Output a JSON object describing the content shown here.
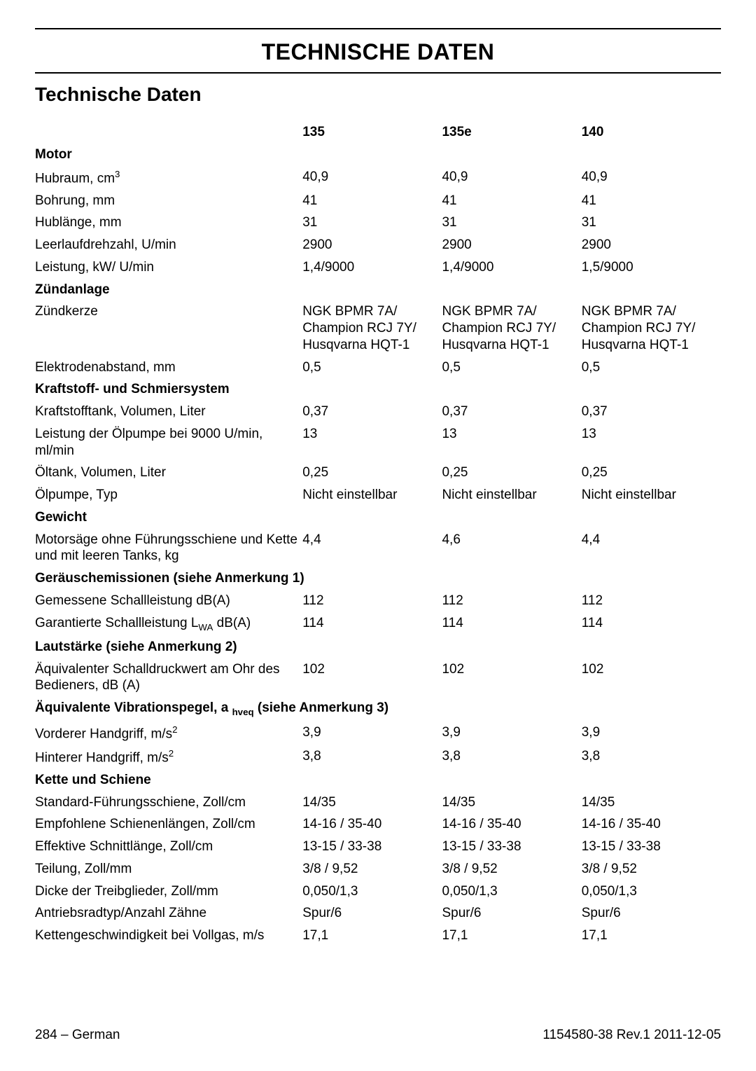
{
  "heading_main": "TECHNISCHE DATEN",
  "heading_section": "Technische Daten",
  "columns": {
    "c1": "135",
    "c2": "135e",
    "c3": "140"
  },
  "groups": [
    {
      "title": "Motor",
      "rows": [
        {
          "label_prefix": "Hubraum, cm",
          "label_sup": "3",
          "v": [
            "40,9",
            "40,9",
            "40,9"
          ]
        },
        {
          "label": "Bohrung, mm",
          "v": [
            "41",
            "41",
            "41"
          ]
        },
        {
          "label": "Hublänge, mm",
          "v": [
            "31",
            "31",
            "31"
          ]
        },
        {
          "label": "Leerlaufdrehzahl, U/min",
          "v": [
            "2900",
            "2900",
            "2900"
          ]
        },
        {
          "label": "Leistung, kW/ U/min",
          "v": [
            "1,4/9000",
            "1,4/9000",
            "1,5/9000"
          ]
        }
      ]
    },
    {
      "title": "Zündanlage",
      "rows": [
        {
          "label": "Zündkerze",
          "v": [
            "NGK BPMR 7A/ Champion RCJ 7Y/ Husqvarna HQT-1",
            "NGK BPMR 7A/ Champion RCJ 7Y/ Husqvarna HQT-1",
            "NGK BPMR 7A/ Champion RCJ 7Y/ Husqvarna HQT-1"
          ]
        },
        {
          "label": "Elektrodenabstand, mm",
          "v": [
            "0,5",
            "0,5",
            "0,5"
          ]
        }
      ]
    },
    {
      "title": "Kraftstoff- und Schmiersystem",
      "rows": [
        {
          "label": "Kraftstofftank, Volumen, Liter",
          "v": [
            "0,37",
            "0,37",
            "0,37"
          ]
        },
        {
          "label": "Leistung der Ölpumpe bei 9000 U/min, ml/min",
          "v": [
            "13",
            "13",
            "13"
          ]
        },
        {
          "label": "Öltank, Volumen, Liter",
          "v": [
            "0,25",
            "0,25",
            "0,25"
          ]
        },
        {
          "label": "Ölpumpe, Typ",
          "v": [
            "Nicht einstellbar",
            "Nicht einstellbar",
            "Nicht einstellbar"
          ]
        }
      ]
    },
    {
      "title": "Gewicht",
      "rows": [
        {
          "label": "Motorsäge ohne Führungsschiene und Kette und mit leeren Tanks, kg",
          "v": [
            "4,4",
            "4,6",
            "4,4"
          ]
        }
      ]
    },
    {
      "title": "Geräuschemissionen (siehe Anmerkung 1)",
      "rows": [
        {
          "label": "Gemessene Schallleistung dB(A)",
          "v": [
            "112",
            "112",
            "112"
          ]
        },
        {
          "label_prefix": "Garantierte Schallleistung L",
          "label_sub": "WA",
          "label_suffix": " dB(A)",
          "v": [
            "114",
            "114",
            "114"
          ]
        }
      ]
    },
    {
      "title": "Lautstärke (siehe Anmerkung 2)",
      "rows": [
        {
          "label": "Äquivalenter Schalldruckwert am Ohr des Bedieners, dB (A)",
          "v": [
            "102",
            "102",
            "102"
          ]
        }
      ]
    },
    {
      "title_prefix": "Äquivalente Vibrationspegel, a ",
      "title_sub": "hveq",
      "title_suffix": " (siehe Anmerkung 3)",
      "rows": [
        {
          "label_prefix": "Vorderer Handgriff, m/s",
          "label_sup": "2",
          "v": [
            "3,9",
            "3,9",
            "3,9"
          ]
        },
        {
          "label_prefix": "Hinterer Handgriff, m/s",
          "label_sup": "2",
          "v": [
            "3,8",
            "3,8",
            "3,8"
          ]
        }
      ]
    },
    {
      "title": "Kette und Schiene",
      "rows": [
        {
          "label": "Standard-Führungsschiene, Zoll/cm",
          "v": [
            "14/35",
            "14/35",
            "14/35"
          ]
        },
        {
          "label": "Empfohlene Schienenlängen, Zoll/cm",
          "v": [
            "14-16 / 35-40",
            "14-16 / 35-40",
            "14-16 / 35-40"
          ]
        },
        {
          "label": "Effektive Schnittlänge, Zoll/cm",
          "v": [
            "13-15 / 33-38",
            "13-15 / 33-38",
            "13-15 / 33-38"
          ]
        },
        {
          "label": "Teilung, Zoll/mm",
          "v": [
            "3/8 / 9,52",
            "3/8 / 9,52",
            "3/8 / 9,52"
          ]
        },
        {
          "label": "Dicke der Treibglieder, Zoll/mm",
          "v": [
            "0,050/1,3",
            "0,050/1,3",
            "0,050/1,3"
          ]
        },
        {
          "label": "Antriebsradtyp/Anzahl Zähne",
          "v": [
            "Spur/6",
            "Spur/6",
            "Spur/6"
          ]
        },
        {
          "label": "Kettengeschwindigkeit bei Vollgas, m/s",
          "v": [
            "17,1",
            "17,1",
            "17,1"
          ]
        }
      ]
    }
  ],
  "footer_left": "284 – German",
  "footer_right": "1154580-38 Rev.1 2011-12-05"
}
